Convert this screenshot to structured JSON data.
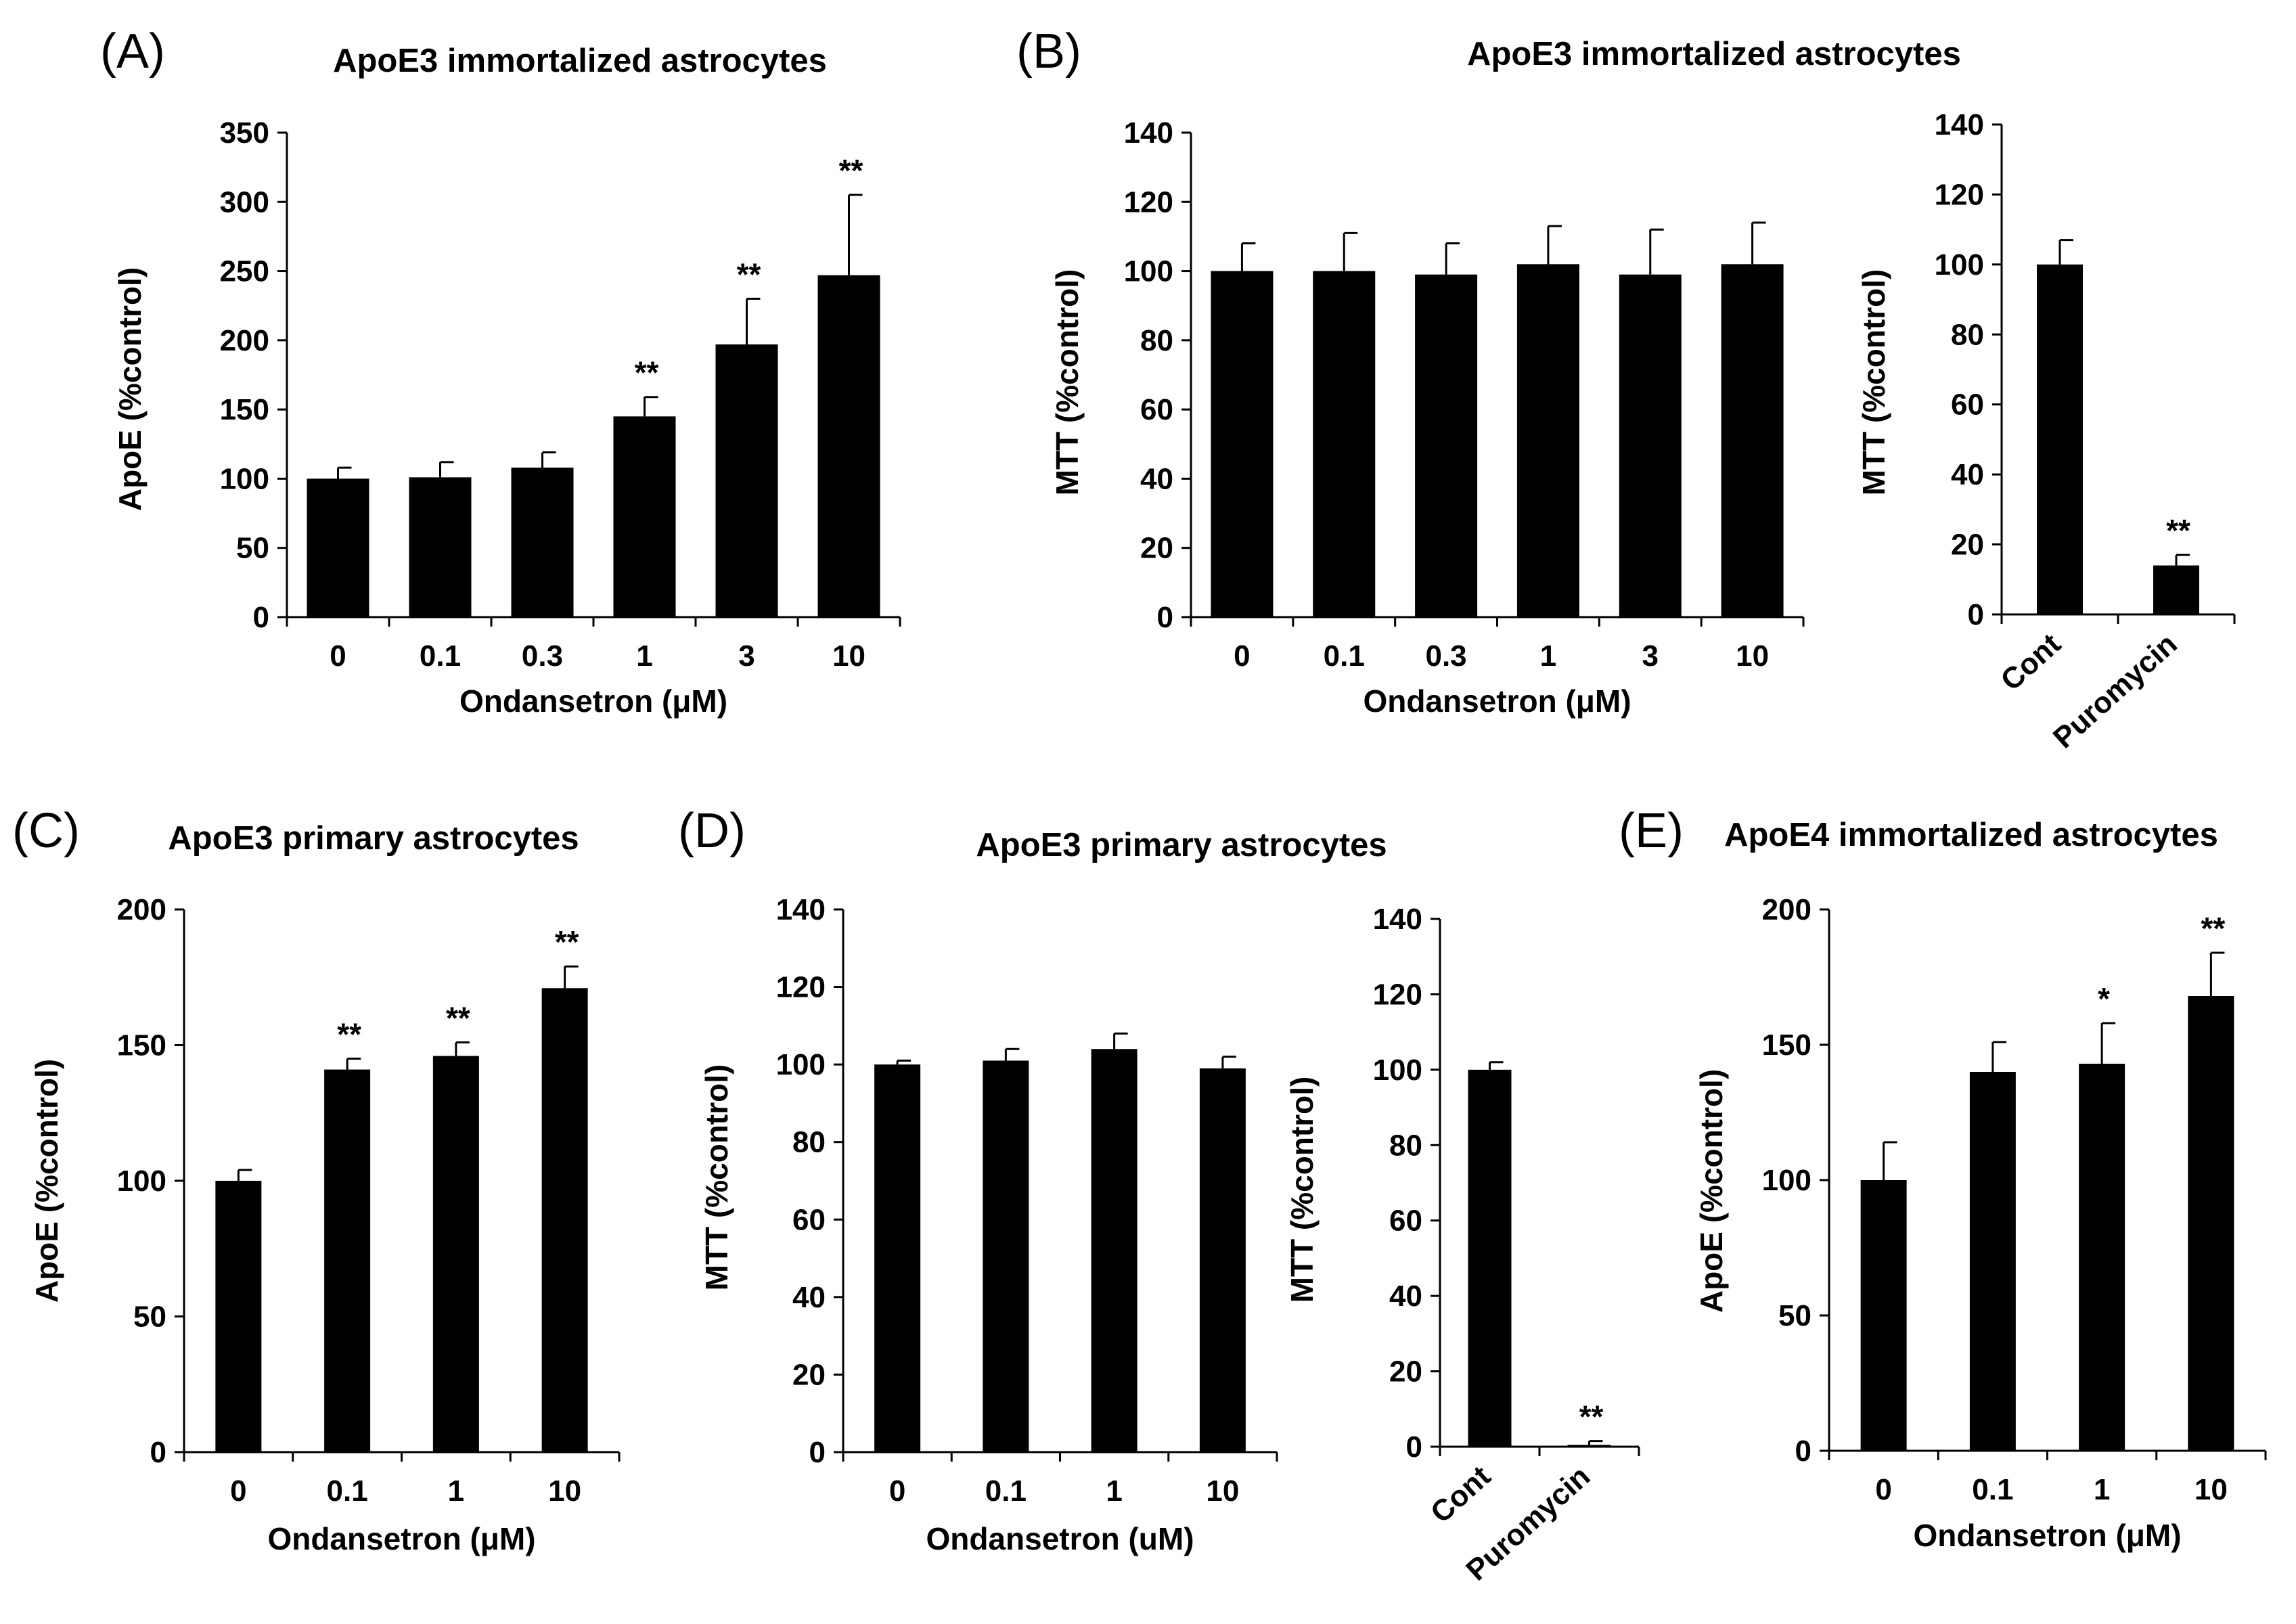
{
  "colors": {
    "bar": "#000000",
    "axis": "#000000",
    "background": "#ffffff"
  },
  "panel_labels": [
    "(A)",
    "(B)",
    "(C)",
    "(D)",
    "(E)"
  ],
  "titles": {
    "A": "ApoE3 immortalized astrocytes",
    "B": "ApoE3 immortalized astrocytes",
    "C": "ApoE3 primary astrocytes",
    "D": "ApoE3 primary astrocytes",
    "E": "ApoE4 immortalized astrocytes"
  },
  "chart_data": [
    {
      "id": "A1",
      "type": "bar",
      "ylabel": "ApoE (%control)",
      "xlabel": "Ondansetron (μM)",
      "ylim": [
        0,
        350
      ],
      "yticks": [
        0,
        50,
        100,
        150,
        200,
        250,
        300,
        350
      ],
      "categories": [
        "0",
        "0.1",
        "0.3",
        "1",
        "3",
        "10"
      ],
      "values": [
        100,
        101,
        108,
        145,
        197,
        247
      ],
      "errors": [
        8,
        11,
        11,
        14,
        33,
        58
      ],
      "sig": [
        "",
        "",
        "",
        "**",
        "**",
        "**"
      ]
    },
    {
      "id": "B1",
      "type": "bar",
      "ylabel": "MTT (%control)",
      "xlabel": "Ondansetron (μM)",
      "ylim": [
        0,
        140
      ],
      "yticks": [
        0,
        20,
        40,
        60,
        80,
        100,
        120,
        140
      ],
      "categories": [
        "0",
        "0.1",
        "0.3",
        "1",
        "3",
        "10"
      ],
      "values": [
        100,
        100,
        99,
        102,
        99,
        102
      ],
      "errors": [
        8,
        11,
        9,
        11,
        13,
        12
      ],
      "sig": [
        "",
        "",
        "",
        "",
        "",
        ""
      ]
    },
    {
      "id": "B2",
      "type": "bar",
      "ylabel": "MTT (%control)",
      "xlabel": "",
      "ylim": [
        0,
        140
      ],
      "yticks": [
        0,
        20,
        40,
        60,
        80,
        100,
        120,
        140
      ],
      "categories": [
        "Cont",
        "Puromycin"
      ],
      "values": [
        100,
        14
      ],
      "errors": [
        7,
        3
      ],
      "sig": [
        "",
        "**"
      ]
    },
    {
      "id": "C1",
      "type": "bar",
      "ylabel": "ApoE (%control)",
      "xlabel": "Ondansetron (μM)",
      "ylim": [
        0,
        200
      ],
      "yticks": [
        0,
        50,
        100,
        150,
        200
      ],
      "categories": [
        "0",
        "0.1",
        "1",
        "10"
      ],
      "values": [
        100,
        141,
        146,
        171
      ],
      "errors": [
        4,
        4,
        5,
        8
      ],
      "sig": [
        "",
        "**",
        "**",
        "**"
      ]
    },
    {
      "id": "D1",
      "type": "bar",
      "ylabel": "MTT (%control)",
      "xlabel": "Ondansetron (uM)",
      "ylim": [
        0,
        140
      ],
      "yticks": [
        0,
        20,
        40,
        60,
        80,
        100,
        120,
        140
      ],
      "categories": [
        "0",
        "0.1",
        "1",
        "10"
      ],
      "values": [
        100,
        101,
        104,
        99
      ],
      "errors": [
        1,
        3,
        4,
        3
      ],
      "sig": [
        "",
        "",
        "",
        ""
      ]
    },
    {
      "id": "D2",
      "type": "bar",
      "ylabel": "MTT (%control)",
      "xlabel": "",
      "ylim": [
        0,
        140
      ],
      "yticks": [
        0,
        20,
        40,
        60,
        80,
        100,
        120,
        140
      ],
      "categories": [
        "Cont",
        "Puromycin"
      ],
      "values": [
        100,
        0.5
      ],
      "errors": [
        2,
        1
      ],
      "sig": [
        "",
        "**"
      ]
    },
    {
      "id": "E1",
      "type": "bar",
      "ylabel": "ApoE (%control)",
      "xlabel": "Ondansetron (μM)",
      "ylim": [
        0,
        200
      ],
      "yticks": [
        0,
        50,
        100,
        150,
        200
      ],
      "categories": [
        "0",
        "0.1",
        "1",
        "10"
      ],
      "values": [
        100,
        140,
        143,
        168
      ],
      "errors": [
        14,
        11,
        15,
        16
      ],
      "sig": [
        "",
        "",
        "*",
        "**"
      ]
    }
  ]
}
